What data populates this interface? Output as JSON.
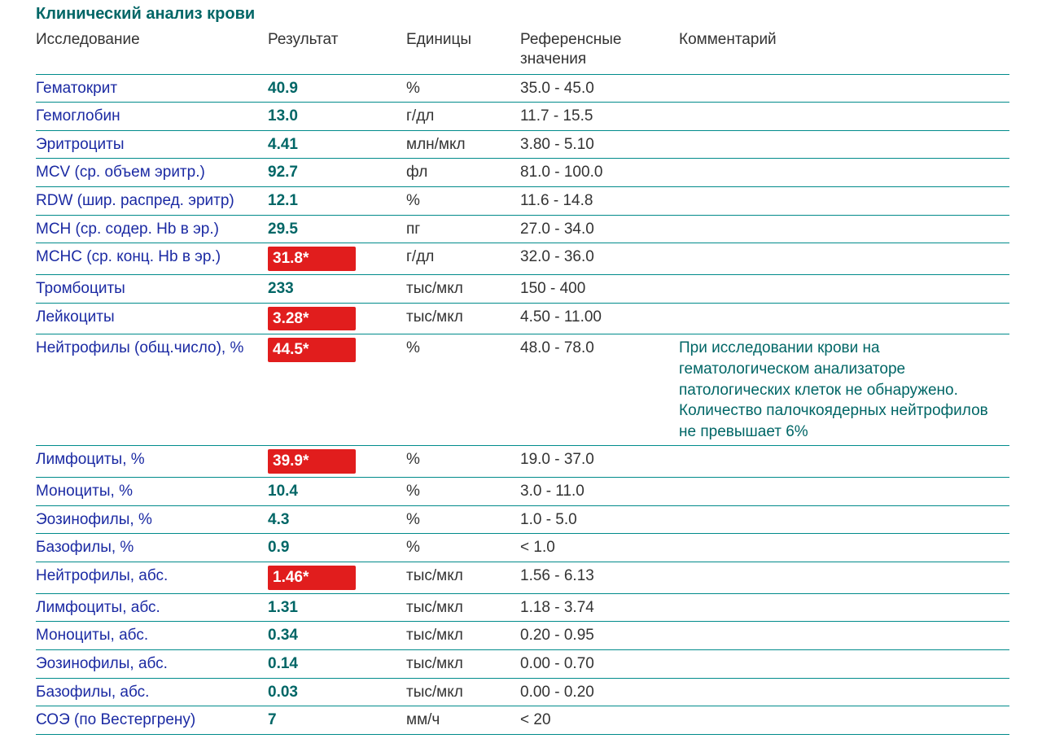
{
  "title": "Клинический анализ крови",
  "columns": {
    "name": "Исследование",
    "result": "Результат",
    "units": "Единицы",
    "ref": "Референсные значения",
    "comment": "Комментарий"
  },
  "colors": {
    "teal_text": "#006666",
    "name_blue": "#1b2aa3",
    "rule": "#008b8b",
    "flag_bg": "#e11d1d",
    "flag_text": "#ffffff",
    "body_text": "#333333",
    "background": "#ffffff"
  },
  "rows": [
    {
      "name": "Гематокрит",
      "result": "40.9",
      "units": "%",
      "ref": "35.0 - 45.0",
      "flag": false,
      "comment": ""
    },
    {
      "name": "Гемоглобин",
      "result": "13.0",
      "units": "г/дл",
      "ref": "11.7 - 15.5",
      "flag": false,
      "comment": ""
    },
    {
      "name": "Эритроциты",
      "result": "4.41",
      "units": "млн/мкл",
      "ref": "3.80 - 5.10",
      "flag": false,
      "comment": ""
    },
    {
      "name": "MCV (ср. объем эритр.)",
      "result": "92.7",
      "units": "фл",
      "ref": "81.0 - 100.0",
      "flag": false,
      "comment": ""
    },
    {
      "name": "RDW (шир. распред. эритр)",
      "result": "12.1",
      "units": "%",
      "ref": "11.6 - 14.8",
      "flag": false,
      "comment": ""
    },
    {
      "name": "MCH (ср. содер. Hb в эр.)",
      "result": "29.5",
      "units": "пг",
      "ref": "27.0 - 34.0",
      "flag": false,
      "comment": ""
    },
    {
      "name": "MCHC (ср. конц. Hb в эр.)",
      "result": "31.8*",
      "units": "г/дл",
      "ref": "32.0 - 36.0",
      "flag": true,
      "comment": ""
    },
    {
      "name": "Тромбоциты",
      "result": "233",
      "units": "тыс/мкл",
      "ref": "150 - 400",
      "flag": false,
      "comment": ""
    },
    {
      "name": "Лейкоциты",
      "result": "3.28*",
      "units": "тыс/мкл",
      "ref": "4.50 - 11.00",
      "flag": true,
      "comment": ""
    },
    {
      "name": "Нейтрофилы (общ.число), %",
      "result": "44.5*",
      "units": "%",
      "ref": "48.0 - 78.0",
      "flag": true,
      "comment": "При исследовании крови на гематологическом анализаторе патологических клеток не обнаружено. Количество палочкоядерных нейтрофилов не превышает 6%"
    },
    {
      "name": "Лимфоциты, %",
      "result": "39.9*",
      "units": "%",
      "ref": "19.0 - 37.0",
      "flag": true,
      "comment": ""
    },
    {
      "name": "Моноциты, %",
      "result": "10.4",
      "units": "%",
      "ref": "3.0 - 11.0",
      "flag": false,
      "comment": ""
    },
    {
      "name": "Эозинофилы, %",
      "result": "4.3",
      "units": "%",
      "ref": "1.0 - 5.0",
      "flag": false,
      "comment": ""
    },
    {
      "name": "Базофилы, %",
      "result": "0.9",
      "units": "%",
      "ref": "< 1.0",
      "flag": false,
      "comment": ""
    },
    {
      "name": "Нейтрофилы, абс.",
      "result": "1.46*",
      "units": "тыс/мкл",
      "ref": "1.56 - 6.13",
      "flag": true,
      "comment": ""
    },
    {
      "name": "Лимфоциты, абс.",
      "result": "1.31",
      "units": "тыс/мкл",
      "ref": "1.18 - 3.74",
      "flag": false,
      "comment": ""
    },
    {
      "name": "Моноциты, абс.",
      "result": "0.34",
      "units": "тыс/мкл",
      "ref": "0.20 - 0.95",
      "flag": false,
      "comment": ""
    },
    {
      "name": "Эозинофилы, абс.",
      "result": "0.14",
      "units": "тыс/мкл",
      "ref": "0.00 - 0.70",
      "flag": false,
      "comment": ""
    },
    {
      "name": "Базофилы, абс.",
      "result": "0.03",
      "units": "тыс/мкл",
      "ref": "0.00 - 0.20",
      "flag": false,
      "comment": ""
    },
    {
      "name": "СОЭ (по Вестергрену)",
      "result": "7",
      "units": "мм/ч",
      "ref": "< 20",
      "flag": false,
      "comment": ""
    }
  ]
}
